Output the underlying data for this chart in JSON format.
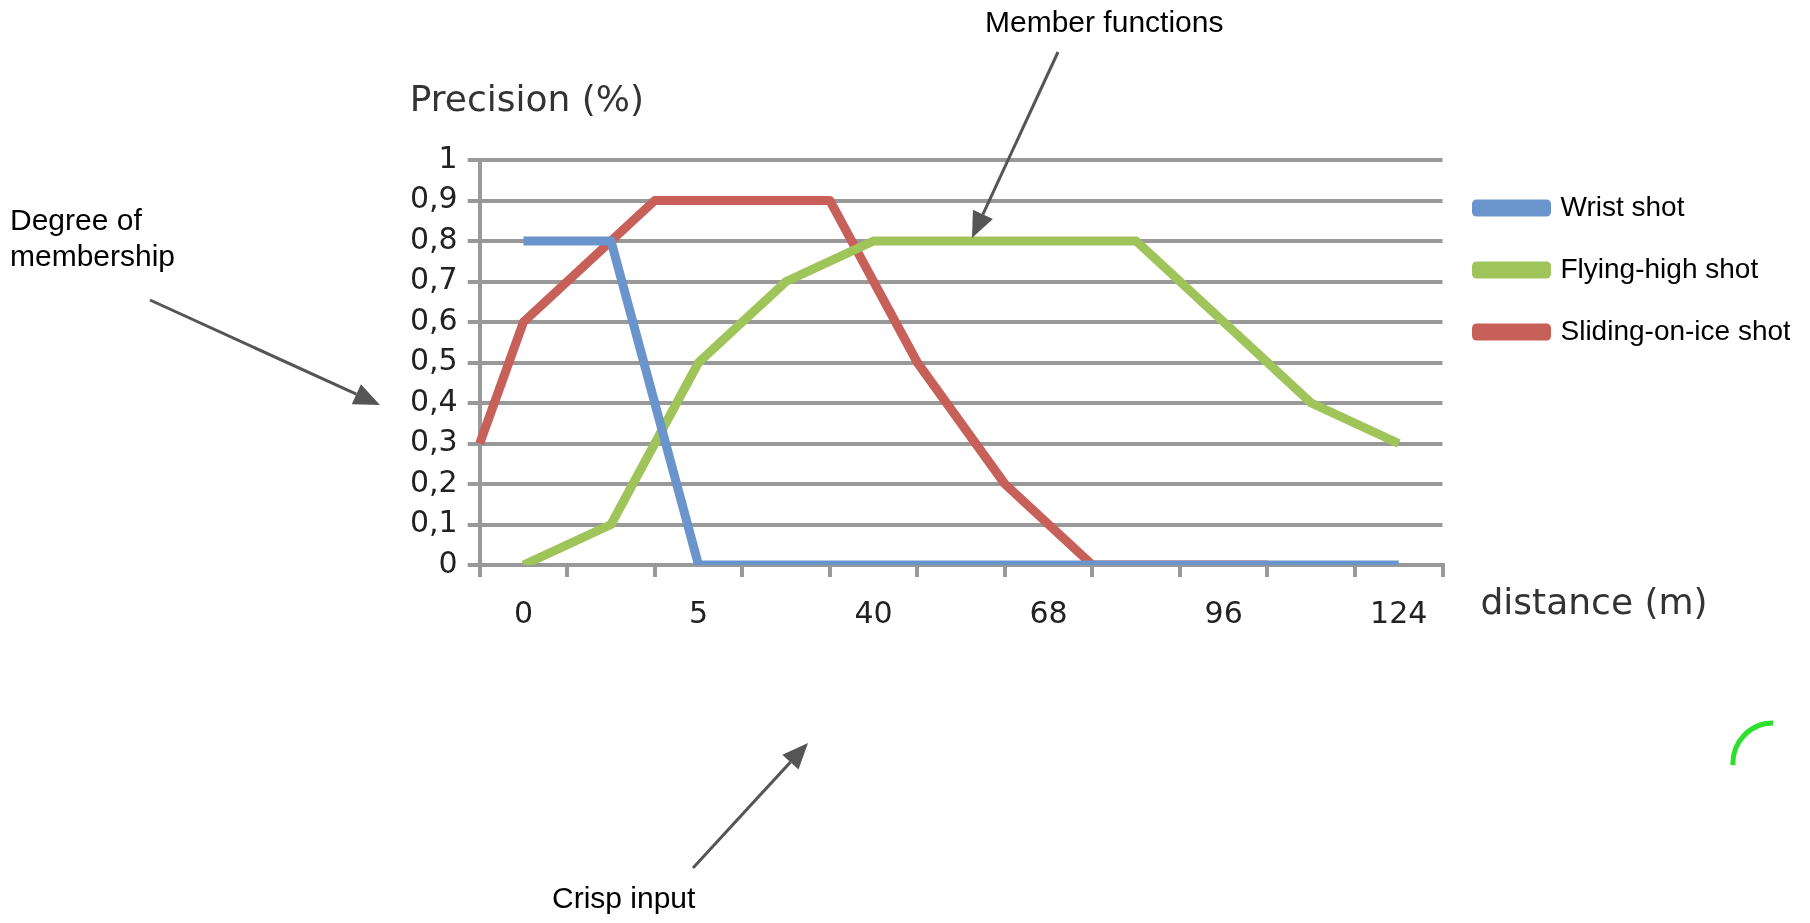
{
  "chart_data": {
    "type": "line",
    "ylabel": "Precision (%)",
    "xlabel": "distance (m)",
    "categories": [
      null,
      "0",
      null,
      null,
      null,
      "5",
      null,
      null,
      null,
      "40",
      null,
      null,
      null,
      "68",
      null,
      null,
      null,
      "96",
      null,
      null,
      null,
      "124",
      null
    ],
    "ylim": [
      0,
      1
    ],
    "yticks": [
      {
        "value": 0,
        "label": "0"
      },
      {
        "value": 0.1,
        "label": "0,1"
      },
      {
        "value": 0.2,
        "label": "0,2"
      },
      {
        "value": 0.3,
        "label": "0,3"
      },
      {
        "value": 0.4,
        "label": "0,4"
      },
      {
        "value": 0.5,
        "label": "0,5"
      },
      {
        "value": 0.6,
        "label": "0,6"
      },
      {
        "value": 0.7,
        "label": "0,7"
      },
      {
        "value": 0.8,
        "label": "0,8"
      },
      {
        "value": 0.9,
        "label": "0,9"
      },
      {
        "value": 1,
        "label": "1"
      }
    ],
    "series": [
      {
        "name": "Wrist shot",
        "color": "#6a95cc",
        "values": [
          null,
          0.8,
          null,
          0.8,
          null,
          0,
          null,
          0,
          null,
          0,
          null,
          0,
          null,
          0,
          null,
          0,
          null,
          0,
          null,
          0,
          null,
          0,
          null
        ]
      },
      {
        "name": "Flying-high shot",
        "color": "#9fc45a",
        "values": [
          null,
          0,
          null,
          0.1,
          null,
          0.5,
          null,
          0.7,
          null,
          0.8,
          null,
          0.8,
          null,
          0.8,
          null,
          0.8,
          null,
          0.6,
          null,
          0.4,
          null,
          0.3,
          null
        ]
      },
      {
        "name": "Sliding-on-ice shot",
        "color": "#c8605a",
        "values": [
          0.3,
          0.6,
          null,
          null,
          0.9,
          null,
          null,
          null,
          0.9,
          null,
          0.5,
          null,
          0.2,
          null,
          0,
          null,
          null,
          null,
          0,
          null,
          null,
          null,
          null
        ]
      }
    ],
    "grid": "y",
    "legend": "top right",
    "marker": "none",
    "line_style": "solid",
    "annotations": [
      "Degree of membership",
      "Member functions",
      "Crisp input"
    ]
  }
}
